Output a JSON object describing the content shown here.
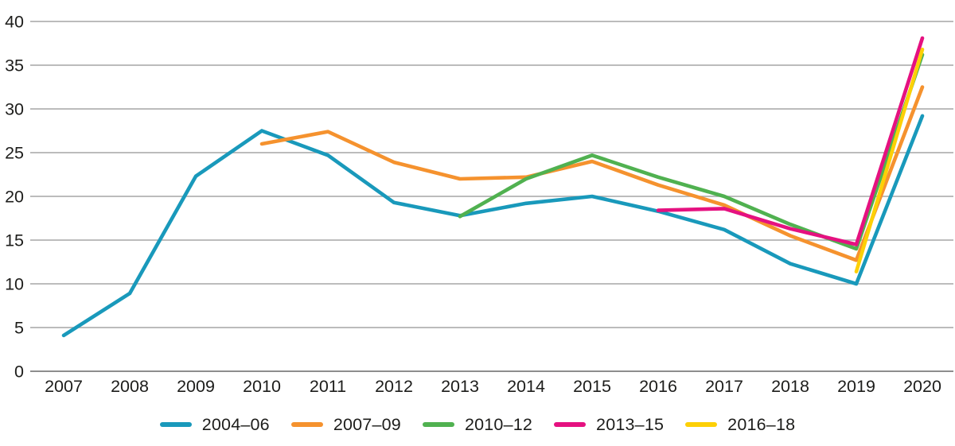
{
  "figure": {
    "kind": "line-chart",
    "background": "#ffffff",
    "text_color": "#1d1d1b",
    "grid_color": "#a6a6a6",
    "axis_color": "#8d8d8d"
  },
  "chart_data": {
    "type": "line",
    "title": "",
    "xlabel": "",
    "ylabel": "",
    "x": [
      2007,
      2008,
      2009,
      2010,
      2011,
      2012,
      2013,
      2014,
      2015,
      2016,
      2017,
      2018,
      2019,
      2020
    ],
    "ylim": [
      0,
      40
    ],
    "yticks": [
      0,
      5,
      10,
      15,
      20,
      25,
      30,
      35,
      40
    ],
    "grid": "horizontal",
    "legend_position": "bottom",
    "series": [
      {
        "name": "2004–06",
        "color": "#1999bb",
        "values": [
          4.1,
          8.9,
          22.3,
          27.5,
          24.7,
          19.3,
          17.8,
          19.2,
          20.0,
          18.3,
          16.2,
          12.3,
          10.0,
          29.2
        ]
      },
      {
        "name": "2007–09",
        "color": "#f5922e",
        "values": [
          null,
          null,
          null,
          26.0,
          27.4,
          23.9,
          22.0,
          22.2,
          24.0,
          21.3,
          19.0,
          15.5,
          12.7,
          32.5
        ]
      },
      {
        "name": "2010–12",
        "color": "#50b150",
        "values": [
          null,
          null,
          null,
          null,
          null,
          null,
          17.7,
          22.0,
          24.7,
          22.2,
          20.0,
          16.8,
          14.0,
          36.2
        ]
      },
      {
        "name": "2013–15",
        "color": "#e51180",
        "values": [
          null,
          null,
          null,
          null,
          null,
          null,
          null,
          null,
          null,
          18.4,
          18.6,
          16.3,
          14.5,
          38.1
        ]
      },
      {
        "name": "2016–18",
        "color": "#fdd006",
        "values": [
          null,
          null,
          null,
          null,
          null,
          null,
          null,
          null,
          null,
          null,
          null,
          null,
          11.4,
          36.8
        ]
      }
    ]
  }
}
